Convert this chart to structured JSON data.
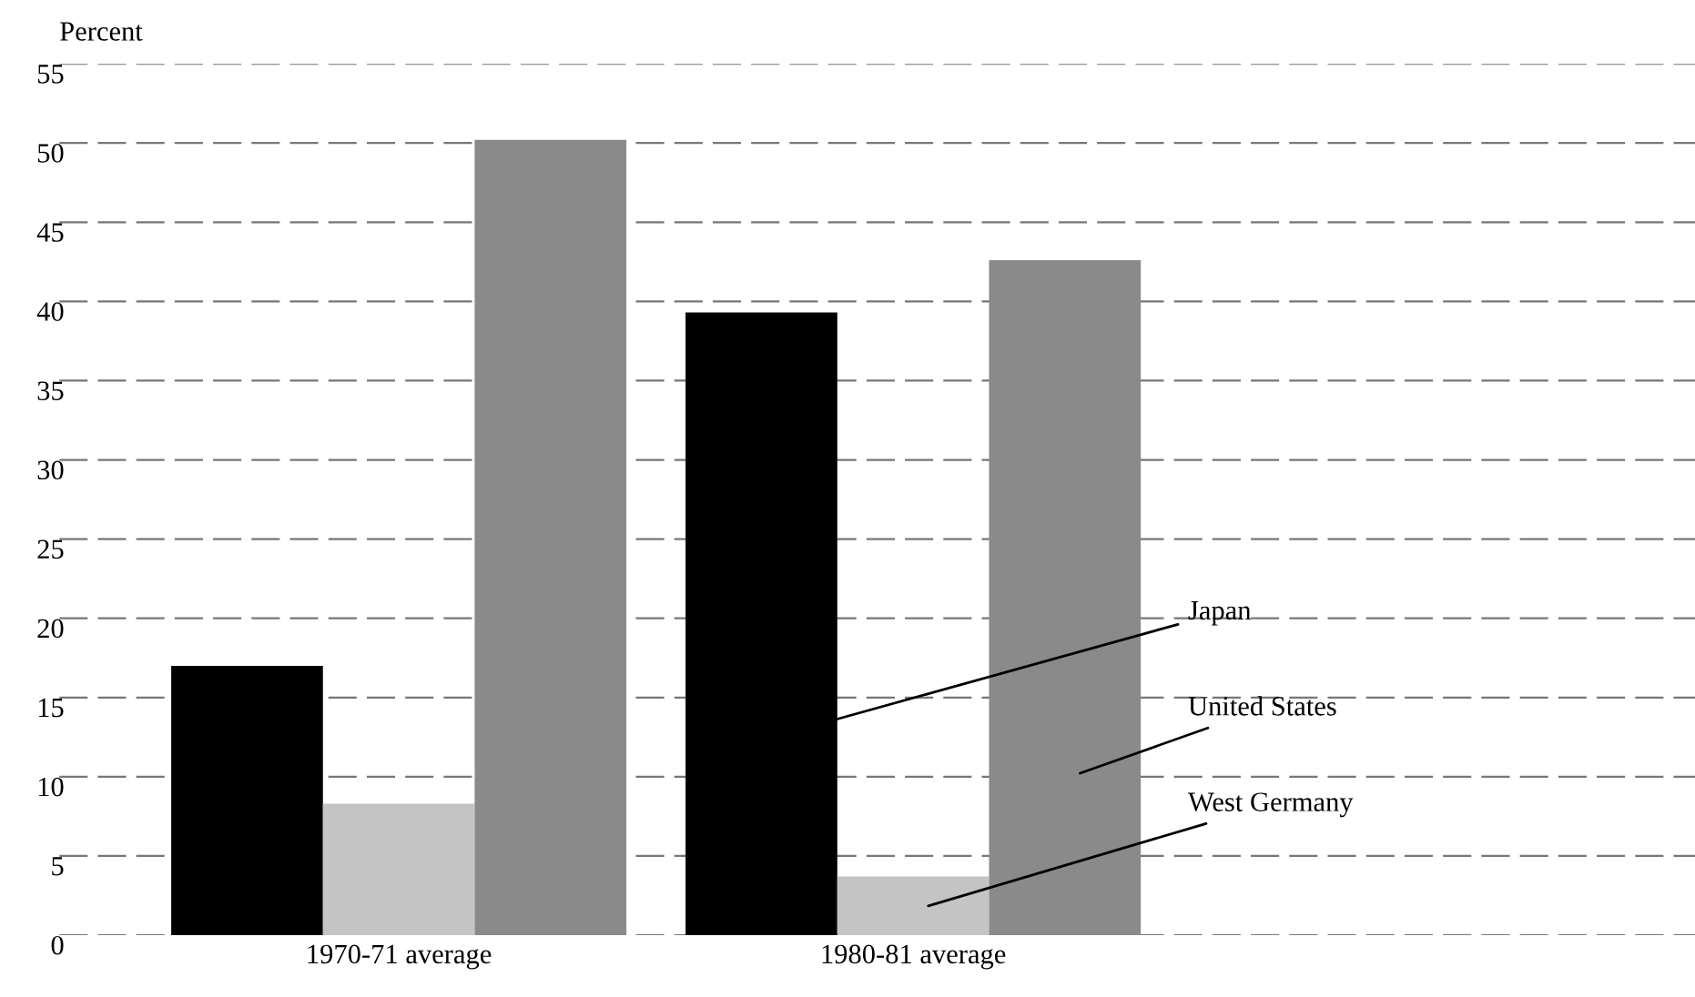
{
  "chart_data": {
    "type": "bar",
    "ylabel": "Percent",
    "categories": [
      "1970-71 average",
      "1980-81 average"
    ],
    "series": [
      {
        "name": "Japan",
        "color": "#000000",
        "values": [
          17.0,
          39.3
        ]
      },
      {
        "name": "West Germany",
        "color": "#c4c4c4",
        "values": [
          8.3,
          3.7
        ]
      },
      {
        "name": "United States",
        "color": "#8a8a8a",
        "values": [
          50.2,
          42.6
        ]
      }
    ],
    "ylim": [
      0,
      55
    ],
    "yticks": [
      0,
      5,
      10,
      15,
      20,
      25,
      30,
      35,
      40,
      45,
      50,
      55
    ],
    "grid": "y",
    "legend": false
  }
}
